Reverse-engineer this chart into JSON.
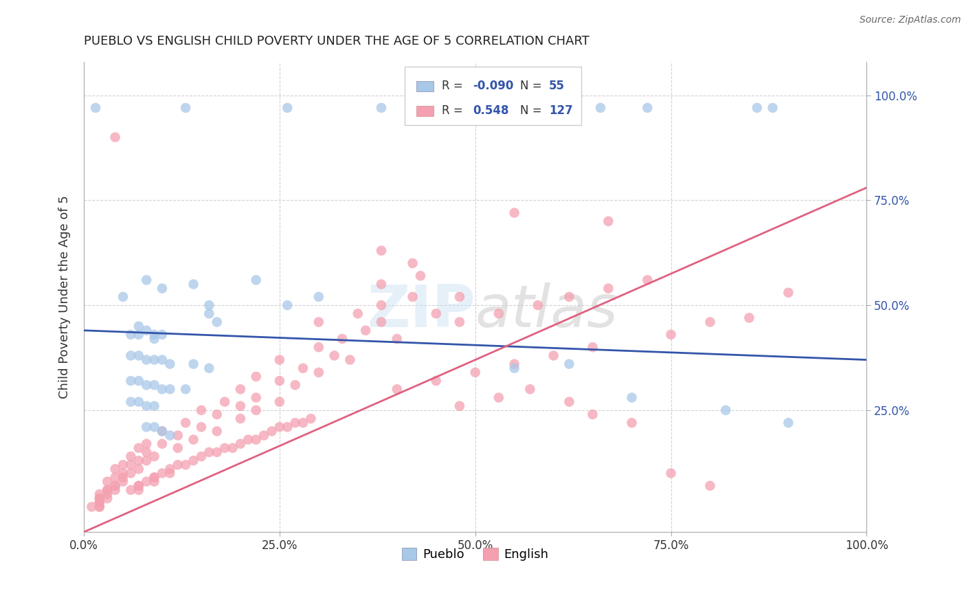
{
  "title": "PUEBLO VS ENGLISH CHILD POVERTY UNDER THE AGE OF 5 CORRELATION CHART",
  "source": "Source: ZipAtlas.com",
  "ylabel": "Child Poverty Under the Age of 5",
  "xlim": [
    0.0,
    1.0
  ],
  "ylim": [
    -0.04,
    1.08
  ],
  "x_ticks": [
    0.0,
    0.25,
    0.5,
    0.75,
    1.0
  ],
  "x_tick_labels": [
    "0.0%",
    "25.0%",
    "50.0%",
    "75.0%",
    "100.0%"
  ],
  "y_ticks": [
    0.25,
    0.5,
    0.75,
    1.0
  ],
  "y_tick_labels": [
    "25.0%",
    "50.0%",
    "75.0%",
    "100.0%"
  ],
  "pueblo_color": "#a8c8e8",
  "english_color": "#f4a0b0",
  "pueblo_line_color": "#3355aa",
  "english_line_color": "#e06080",
  "pueblo_R": -0.09,
  "pueblo_N": 55,
  "english_R": 0.548,
  "english_N": 127,
  "background_color": "#ffffff",
  "grid_color": "#cccccc",
  "watermark": "ZIPatlas",
  "title_color": "#222222",
  "source_color": "#666666",
  "right_tick_color": "#3355aa",
  "legend_R_color": "#3355aa",
  "pueblo_scatter": [
    [
      0.015,
      0.97
    ],
    [
      0.13,
      0.97
    ],
    [
      0.26,
      0.97
    ],
    [
      0.38,
      0.97
    ],
    [
      0.53,
      0.97
    ],
    [
      0.53,
      0.97
    ],
    [
      0.66,
      0.97
    ],
    [
      0.72,
      0.97
    ],
    [
      0.86,
      0.97
    ],
    [
      0.88,
      0.97
    ],
    [
      0.05,
      0.52
    ],
    [
      0.08,
      0.56
    ],
    [
      0.1,
      0.54
    ],
    [
      0.14,
      0.55
    ],
    [
      0.16,
      0.5
    ],
    [
      0.16,
      0.48
    ],
    [
      0.17,
      0.46
    ],
    [
      0.22,
      0.56
    ],
    [
      0.26,
      0.5
    ],
    [
      0.3,
      0.52
    ],
    [
      0.06,
      0.43
    ],
    [
      0.07,
      0.45
    ],
    [
      0.07,
      0.43
    ],
    [
      0.08,
      0.44
    ],
    [
      0.09,
      0.43
    ],
    [
      0.09,
      0.42
    ],
    [
      0.1,
      0.43
    ],
    [
      0.06,
      0.38
    ],
    [
      0.07,
      0.38
    ],
    [
      0.08,
      0.37
    ],
    [
      0.09,
      0.37
    ],
    [
      0.1,
      0.37
    ],
    [
      0.11,
      0.36
    ],
    [
      0.14,
      0.36
    ],
    [
      0.16,
      0.35
    ],
    [
      0.06,
      0.32
    ],
    [
      0.07,
      0.32
    ],
    [
      0.08,
      0.31
    ],
    [
      0.09,
      0.31
    ],
    [
      0.1,
      0.3
    ],
    [
      0.11,
      0.3
    ],
    [
      0.13,
      0.3
    ],
    [
      0.06,
      0.27
    ],
    [
      0.07,
      0.27
    ],
    [
      0.08,
      0.26
    ],
    [
      0.09,
      0.26
    ],
    [
      0.08,
      0.21
    ],
    [
      0.09,
      0.21
    ],
    [
      0.1,
      0.2
    ],
    [
      0.11,
      0.19
    ],
    [
      0.55,
      0.35
    ],
    [
      0.62,
      0.36
    ],
    [
      0.7,
      0.28
    ],
    [
      0.82,
      0.25
    ],
    [
      0.9,
      0.22
    ]
  ],
  "english_scatter": [
    [
      0.04,
      0.9
    ],
    [
      0.55,
      0.72
    ],
    [
      0.67,
      0.7
    ],
    [
      0.38,
      0.63
    ],
    [
      0.42,
      0.6
    ],
    [
      0.38,
      0.55
    ],
    [
      0.43,
      0.57
    ],
    [
      0.48,
      0.52
    ],
    [
      0.38,
      0.5
    ],
    [
      0.42,
      0.52
    ],
    [
      0.45,
      0.48
    ],
    [
      0.3,
      0.46
    ],
    [
      0.35,
      0.48
    ],
    [
      0.38,
      0.46
    ],
    [
      0.33,
      0.42
    ],
    [
      0.36,
      0.44
    ],
    [
      0.4,
      0.42
    ],
    [
      0.3,
      0.4
    ],
    [
      0.32,
      0.38
    ],
    [
      0.34,
      0.37
    ],
    [
      0.25,
      0.37
    ],
    [
      0.28,
      0.35
    ],
    [
      0.3,
      0.34
    ],
    [
      0.22,
      0.33
    ],
    [
      0.25,
      0.32
    ],
    [
      0.27,
      0.31
    ],
    [
      0.2,
      0.3
    ],
    [
      0.22,
      0.28
    ],
    [
      0.25,
      0.27
    ],
    [
      0.18,
      0.27
    ],
    [
      0.2,
      0.26
    ],
    [
      0.22,
      0.25
    ],
    [
      0.15,
      0.25
    ],
    [
      0.17,
      0.24
    ],
    [
      0.2,
      0.23
    ],
    [
      0.13,
      0.22
    ],
    [
      0.15,
      0.21
    ],
    [
      0.17,
      0.2
    ],
    [
      0.1,
      0.2
    ],
    [
      0.12,
      0.19
    ],
    [
      0.14,
      0.18
    ],
    [
      0.08,
      0.17
    ],
    [
      0.1,
      0.17
    ],
    [
      0.12,
      0.16
    ],
    [
      0.07,
      0.16
    ],
    [
      0.08,
      0.15
    ],
    [
      0.09,
      0.14
    ],
    [
      0.06,
      0.14
    ],
    [
      0.07,
      0.13
    ],
    [
      0.08,
      0.13
    ],
    [
      0.05,
      0.12
    ],
    [
      0.06,
      0.12
    ],
    [
      0.07,
      0.11
    ],
    [
      0.04,
      0.11
    ],
    [
      0.05,
      0.1
    ],
    [
      0.06,
      0.1
    ],
    [
      0.04,
      0.09
    ],
    [
      0.05,
      0.09
    ],
    [
      0.05,
      0.08
    ],
    [
      0.03,
      0.08
    ],
    [
      0.04,
      0.07
    ],
    [
      0.04,
      0.07
    ],
    [
      0.03,
      0.06
    ],
    [
      0.03,
      0.06
    ],
    [
      0.03,
      0.05
    ],
    [
      0.02,
      0.05
    ],
    [
      0.02,
      0.04
    ],
    [
      0.03,
      0.04
    ],
    [
      0.02,
      0.04
    ],
    [
      0.02,
      0.03
    ],
    [
      0.02,
      0.03
    ],
    [
      0.02,
      0.02
    ],
    [
      0.02,
      0.02
    ],
    [
      0.01,
      0.02
    ],
    [
      0.04,
      0.06
    ],
    [
      0.06,
      0.06
    ],
    [
      0.07,
      0.06
    ],
    [
      0.07,
      0.07
    ],
    [
      0.07,
      0.07
    ],
    [
      0.08,
      0.08
    ],
    [
      0.09,
      0.08
    ],
    [
      0.09,
      0.09
    ],
    [
      0.09,
      0.09
    ],
    [
      0.1,
      0.1
    ],
    [
      0.11,
      0.1
    ],
    [
      0.11,
      0.11
    ],
    [
      0.12,
      0.12
    ],
    [
      0.13,
      0.12
    ],
    [
      0.14,
      0.13
    ],
    [
      0.15,
      0.14
    ],
    [
      0.16,
      0.15
    ],
    [
      0.17,
      0.15
    ],
    [
      0.18,
      0.16
    ],
    [
      0.19,
      0.16
    ],
    [
      0.2,
      0.17
    ],
    [
      0.21,
      0.18
    ],
    [
      0.22,
      0.18
    ],
    [
      0.23,
      0.19
    ],
    [
      0.24,
      0.2
    ],
    [
      0.25,
      0.21
    ],
    [
      0.26,
      0.21
    ],
    [
      0.27,
      0.22
    ],
    [
      0.28,
      0.22
    ],
    [
      0.29,
      0.23
    ],
    [
      0.4,
      0.3
    ],
    [
      0.45,
      0.32
    ],
    [
      0.5,
      0.34
    ],
    [
      0.55,
      0.36
    ],
    [
      0.6,
      0.38
    ],
    [
      0.65,
      0.4
    ],
    [
      0.48,
      0.46
    ],
    [
      0.53,
      0.48
    ],
    [
      0.58,
      0.5
    ],
    [
      0.62,
      0.52
    ],
    [
      0.67,
      0.54
    ],
    [
      0.72,
      0.56
    ],
    [
      0.48,
      0.26
    ],
    [
      0.53,
      0.28
    ],
    [
      0.57,
      0.3
    ],
    [
      0.62,
      0.27
    ],
    [
      0.65,
      0.24
    ],
    [
      0.7,
      0.22
    ],
    [
      0.75,
      0.43
    ],
    [
      0.8,
      0.46
    ],
    [
      0.85,
      0.47
    ],
    [
      0.9,
      0.53
    ],
    [
      0.75,
      0.1
    ],
    [
      0.8,
      0.07
    ]
  ],
  "pueblo_line": [
    0.0,
    0.44,
    1.0,
    0.37
  ],
  "english_line": [
    0.0,
    -0.04,
    1.0,
    0.78
  ]
}
